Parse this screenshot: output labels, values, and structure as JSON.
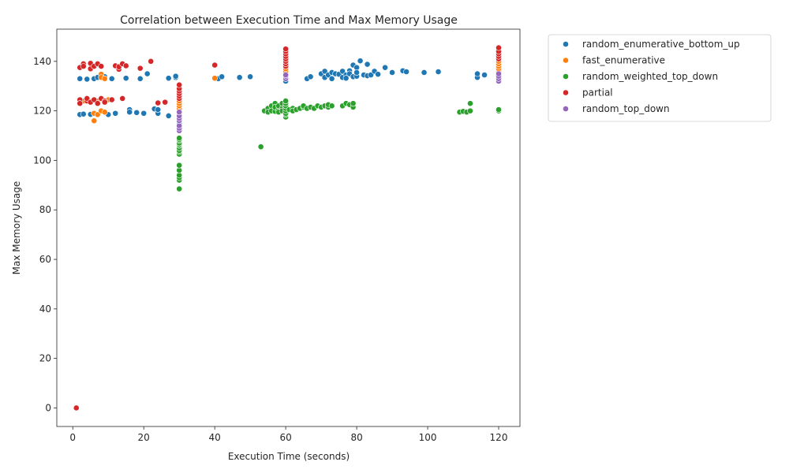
{
  "chart_data": {
    "type": "scatter",
    "title": "Correlation between Execution Time and Max Memory Usage",
    "xlabel": "Execution Time (seconds)",
    "ylabel": "Max Memory Usage",
    "xlim": [
      -4.5,
      126
    ],
    "ylim": [
      -7.5,
      153
    ],
    "xticks": [
      0,
      20,
      40,
      60,
      80,
      100,
      120
    ],
    "yticks": [
      0,
      20,
      40,
      60,
      80,
      100,
      120,
      140
    ],
    "grid": false,
    "legend": "outside-upper-right",
    "series": [
      {
        "name": "random_enumerative_bottom_up",
        "color": "#1f77b4",
        "points": [
          [
            2,
            118.5
          ],
          [
            3,
            118.7
          ],
          [
            5,
            118.6
          ],
          [
            2,
            133
          ],
          [
            4,
            132.8
          ],
          [
            6,
            133
          ],
          [
            7,
            133.5
          ],
          [
            9,
            133.8
          ],
          [
            11,
            133
          ],
          [
            10,
            118.5
          ],
          [
            12,
            119
          ],
          [
            15,
            133.2
          ],
          [
            16,
            120.5
          ],
          [
            16,
            119.5
          ],
          [
            18,
            119.3
          ],
          [
            20,
            119
          ],
          [
            19,
            133
          ],
          [
            21,
            135
          ],
          [
            23,
            120.8
          ],
          [
            24,
            119
          ],
          [
            24,
            120.5
          ],
          [
            27,
            118
          ],
          [
            27,
            133.2
          ],
          [
            29,
            133.5
          ],
          [
            29,
            134
          ],
          [
            30,
            115
          ],
          [
            30,
            118
          ],
          [
            41,
            133
          ],
          [
            42,
            133.8
          ],
          [
            47,
            133.5
          ],
          [
            50,
            133.8
          ],
          [
            60,
            132
          ],
          [
            60,
            135
          ],
          [
            66,
            133
          ],
          [
            67,
            133.8
          ],
          [
            70,
            135
          ],
          [
            71,
            136
          ],
          [
            71,
            133.5
          ],
          [
            72,
            134.5
          ],
          [
            73,
            133
          ],
          [
            73,
            135.5
          ],
          [
            74,
            135
          ],
          [
            75,
            134.8
          ],
          [
            76,
            133.5
          ],
          [
            76,
            136
          ],
          [
            77,
            134.5
          ],
          [
            77,
            133.2
          ],
          [
            78,
            136.2
          ],
          [
            78,
            135
          ],
          [
            79,
            133.8
          ],
          [
            79,
            138.5
          ],
          [
            80,
            134
          ],
          [
            80,
            137.5
          ],
          [
            80,
            135.5
          ],
          [
            81,
            140.2
          ],
          [
            82,
            134.5
          ],
          [
            83,
            138.8
          ],
          [
            83,
            134.2
          ],
          [
            84,
            134.5
          ],
          [
            85,
            136
          ],
          [
            86,
            134.8
          ],
          [
            88,
            137.5
          ],
          [
            90,
            135.5
          ],
          [
            93,
            136.2
          ],
          [
            94,
            135.8
          ],
          [
            99,
            135.5
          ],
          [
            103,
            135.8
          ],
          [
            114,
            133.5
          ],
          [
            114,
            135
          ],
          [
            116,
            134.5
          ],
          [
            120,
            134
          ],
          [
            120,
            135
          ]
        ]
      },
      {
        "name": "fast_enumerative",
        "color": "#ff7f0e",
        "points": [
          [
            3,
            124
          ],
          [
            4,
            125
          ],
          [
            5,
            123.5
          ],
          [
            6,
            116
          ],
          [
            6,
            119
          ],
          [
            7,
            118.5
          ],
          [
            7,
            124
          ],
          [
            8,
            120
          ],
          [
            8,
            134.8
          ],
          [
            8,
            133.5
          ],
          [
            9,
            133
          ],
          [
            9,
            119.5
          ],
          [
            10,
            124.5
          ],
          [
            30,
            114
          ],
          [
            30,
            116
          ],
          [
            30,
            118
          ],
          [
            30,
            119
          ],
          [
            30,
            120
          ],
          [
            30,
            121
          ],
          [
            30,
            122
          ],
          [
            30,
            123
          ],
          [
            30,
            124
          ],
          [
            30,
            125
          ],
          [
            30,
            126
          ],
          [
            40,
            133.2
          ],
          [
            60,
            133
          ],
          [
            60,
            134
          ],
          [
            60,
            135
          ],
          [
            60,
            136
          ],
          [
            60,
            137
          ],
          [
            60,
            138
          ],
          [
            60,
            139
          ],
          [
            60,
            140
          ],
          [
            120,
            136
          ],
          [
            120,
            137
          ],
          [
            120,
            138
          ],
          [
            120,
            139
          ],
          [
            120,
            140
          ]
        ]
      },
      {
        "name": "random_weighted_top_down",
        "color": "#2ca02c",
        "points": [
          [
            30,
            88.5
          ],
          [
            30,
            92
          ],
          [
            30,
            93
          ],
          [
            30,
            94
          ],
          [
            30,
            96
          ],
          [
            30,
            98
          ],
          [
            30,
            102.5
          ],
          [
            30,
            103.5
          ],
          [
            30,
            104
          ],
          [
            30,
            105
          ],
          [
            30,
            106
          ],
          [
            30,
            106.5
          ],
          [
            30,
            107
          ],
          [
            30,
            108
          ],
          [
            30,
            108.5
          ],
          [
            30,
            109
          ],
          [
            53,
            105.5
          ],
          [
            54,
            120
          ],
          [
            55,
            121
          ],
          [
            55,
            119.5
          ],
          [
            56,
            122
          ],
          [
            56,
            120
          ],
          [
            57,
            123
          ],
          [
            57,
            119.8
          ],
          [
            57,
            121.5
          ],
          [
            58,
            120.5
          ],
          [
            58,
            122
          ],
          [
            58,
            119.5
          ],
          [
            59,
            121
          ],
          [
            59,
            123
          ],
          [
            59,
            120
          ],
          [
            60,
            117.5
          ],
          [
            60,
            118.5
          ],
          [
            60,
            119
          ],
          [
            60,
            120
          ],
          [
            60,
            121
          ],
          [
            60,
            122
          ],
          [
            60,
            123
          ],
          [
            60,
            124
          ],
          [
            61,
            120.5
          ],
          [
            62,
            121
          ],
          [
            62,
            120
          ],
          [
            63,
            120.5
          ],
          [
            64,
            121
          ],
          [
            65,
            121.5
          ],
          [
            65,
            122
          ],
          [
            66,
            121
          ],
          [
            67,
            121.5
          ],
          [
            68,
            121
          ],
          [
            69,
            122
          ],
          [
            70,
            121.5
          ],
          [
            71,
            122
          ],
          [
            72,
            121.5
          ],
          [
            72,
            122.5
          ],
          [
            73,
            122
          ],
          [
            76,
            122
          ],
          [
            77,
            123
          ],
          [
            78,
            122.5
          ],
          [
            79,
            121.5
          ],
          [
            79,
            123
          ],
          [
            109,
            119.5
          ],
          [
            110,
            119.8
          ],
          [
            111,
            119.5
          ],
          [
            112,
            120
          ],
          [
            112,
            123
          ],
          [
            120,
            120
          ],
          [
            120,
            120.5
          ]
        ]
      },
      {
        "name": "partial",
        "color": "#d62728",
        "points": [
          [
            1,
            0
          ],
          [
            2,
            137.5
          ],
          [
            2,
            124.5
          ],
          [
            2,
            123
          ],
          [
            3,
            139
          ],
          [
            3,
            138
          ],
          [
            4,
            124
          ],
          [
            4,
            125
          ],
          [
            5,
            137
          ],
          [
            5,
            139.2
          ],
          [
            5,
            123.5
          ],
          [
            6,
            124.5
          ],
          [
            6,
            138
          ],
          [
            7,
            139
          ],
          [
            7,
            123
          ],
          [
            8,
            138
          ],
          [
            8,
            125
          ],
          [
            9,
            124
          ],
          [
            9,
            123.5
          ],
          [
            11,
            124.5
          ],
          [
            12,
            138.2
          ],
          [
            13,
            136.8
          ],
          [
            13,
            137.8
          ],
          [
            14,
            139
          ],
          [
            14,
            125
          ],
          [
            15,
            138.2
          ],
          [
            19,
            137.2
          ],
          [
            22,
            140
          ],
          [
            24,
            123.2
          ],
          [
            26,
            123.5
          ],
          [
            30,
            125
          ],
          [
            30,
            126
          ],
          [
            30,
            127
          ],
          [
            30,
            128
          ],
          [
            30,
            129
          ],
          [
            30,
            130.5
          ],
          [
            40,
            138.5
          ],
          [
            60,
            138
          ],
          [
            60,
            139
          ],
          [
            60,
            140
          ],
          [
            60,
            141
          ],
          [
            60,
            142
          ],
          [
            60,
            143
          ],
          [
            60,
            144
          ],
          [
            60,
            145
          ],
          [
            120,
            141
          ],
          [
            120,
            142
          ],
          [
            120,
            143
          ],
          [
            120,
            144
          ],
          [
            120,
            145.5
          ]
        ]
      },
      {
        "name": "random_top_down",
        "color": "#9467bd",
        "points": [
          [
            30,
            112
          ],
          [
            30,
            113
          ],
          [
            30,
            114
          ],
          [
            30,
            116
          ],
          [
            30,
            117
          ],
          [
            30,
            118
          ],
          [
            30,
            119.5
          ],
          [
            60,
            133
          ],
          [
            60,
            134
          ],
          [
            60,
            134.5
          ],
          [
            120,
            132
          ],
          [
            120,
            133
          ],
          [
            120,
            134
          ],
          [
            120,
            135
          ]
        ]
      }
    ]
  }
}
